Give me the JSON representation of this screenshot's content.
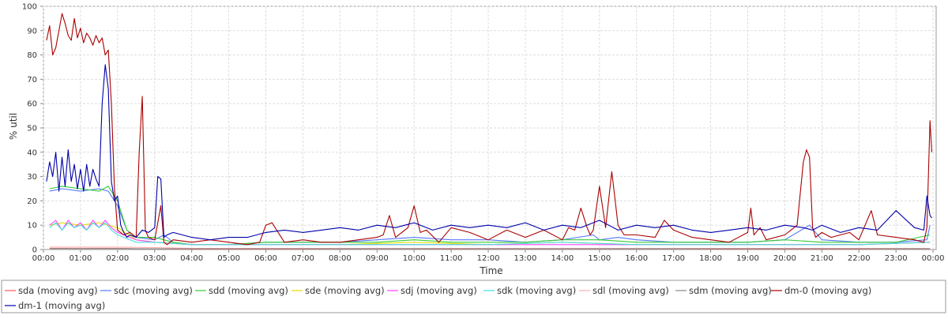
{
  "chart_data": {
    "type": "line",
    "title": "",
    "xlabel": "Time",
    "ylabel": "% util",
    "ylim": [
      0,
      100
    ],
    "xlim": [
      "00:00",
      "24:00"
    ],
    "grid": true,
    "legend_position": "bottom",
    "yticks": [
      0,
      10,
      20,
      30,
      40,
      50,
      60,
      70,
      80,
      90,
      100
    ],
    "xticks": [
      "00:00",
      "01:00",
      "02:00",
      "03:00",
      "04:00",
      "05:00",
      "06:00",
      "07:00",
      "08:00",
      "09:00",
      "10:00",
      "11:00",
      "12:00",
      "13:00",
      "14:00",
      "15:00",
      "16:00",
      "17:00",
      "18:00",
      "19:00",
      "20:00",
      "21:00",
      "22:00",
      "23:00",
      "00:00"
    ],
    "series": [
      {
        "name": "sda (moving avg)",
        "color": "#ff5555",
        "x": [
          "00:10",
          "00:30",
          "01:00",
          "01:30",
          "02:00",
          "02:30",
          "03:00",
          "04:00",
          "05:00",
          "06:00",
          "07:00",
          "08:00",
          "09:00",
          "10:00",
          "11:00",
          "12:00",
          "13:00",
          "14:00",
          "15:00",
          "16:00",
          "17:00",
          "18:00",
          "19:00",
          "20:00",
          "21:00",
          "22:00",
          "23:00",
          "23:55"
        ],
        "values": [
          0.5,
          0.5,
          0.4,
          0.5,
          0.5,
          0.3,
          0.3,
          0.2,
          0.2,
          0.2,
          0.2,
          0.3,
          0.3,
          0.3,
          0.2,
          0.3,
          0.3,
          0.3,
          0.3,
          0.3,
          0.3,
          0.2,
          0.2,
          0.2,
          0.2,
          0.2,
          0.3,
          0.3
        ]
      },
      {
        "name": "sdc (moving avg)",
        "color": "#5577ff",
        "x": [
          "00:10",
          "00:30",
          "01:00",
          "01:30",
          "01:45",
          "02:00",
          "02:15",
          "02:30",
          "03:00",
          "03:15",
          "03:30",
          "04:00",
          "05:00",
          "06:00",
          "07:00",
          "08:00",
          "09:00",
          "10:00",
          "11:00",
          "12:00",
          "13:00",
          "14:00",
          "14:50",
          "15:00",
          "15:30",
          "16:00",
          "17:00",
          "18:00",
          "19:00",
          "20:00",
          "20:40",
          "21:00",
          "22:00",
          "23:00",
          "23:50",
          "23:55"
        ],
        "values": [
          24,
          25,
          24,
          25,
          24,
          18,
          8,
          5,
          4,
          6,
          3,
          2,
          2,
          3,
          3,
          3,
          4,
          5,
          4,
          4,
          3,
          4,
          6,
          4,
          5,
          4,
          3,
          3,
          3,
          4,
          10,
          4,
          3,
          3,
          4,
          10
        ]
      },
      {
        "name": "sdd (moving avg)",
        "color": "#33cc33",
        "x": [
          "00:10",
          "00:30",
          "01:00",
          "01:30",
          "01:45",
          "02:00",
          "02:15",
          "02:30",
          "03:00",
          "03:30",
          "04:00",
          "05:00",
          "06:00",
          "07:00",
          "08:00",
          "09:00",
          "10:00",
          "11:00",
          "12:00",
          "13:00",
          "14:00",
          "15:00",
          "16:00",
          "17:00",
          "18:00",
          "19:00",
          "20:00",
          "21:00",
          "22:00",
          "23:00",
          "23:55"
        ],
        "values": [
          25,
          26,
          25,
          24,
          26,
          20,
          8,
          5,
          5,
          3,
          2,
          2,
          3,
          3,
          3,
          3,
          4,
          3,
          3,
          3,
          4,
          4,
          3,
          3,
          3,
          3,
          4,
          3,
          3,
          3,
          6
        ]
      },
      {
        "name": "sde (moving avg)",
        "color": "#e0e000",
        "x": [
          "00:10",
          "00:30",
          "01:00",
          "01:30",
          "02:00",
          "02:30",
          "03:00",
          "04:00",
          "05:00",
          "06:00",
          "08:00",
          "10:00",
          "12:00",
          "14:00",
          "16:00",
          "18:00",
          "20:00",
          "22:00",
          "23:55"
        ],
        "values": [
          10,
          11,
          10,
          11,
          9,
          4,
          3,
          2,
          2,
          2,
          2,
          3,
          2,
          3,
          2,
          2,
          2,
          2,
          3
        ]
      },
      {
        "name": "sdj (moving avg)",
        "color": "#ff44ff",
        "x": [
          "00:10",
          "00:20",
          "00:30",
          "00:40",
          "00:50",
          "01:00",
          "01:10",
          "01:20",
          "01:30",
          "01:40",
          "01:50",
          "02:00",
          "02:30",
          "03:00",
          "04:00",
          "05:00",
          "06:00",
          "08:00",
          "10:00",
          "12:00",
          "14:00",
          "16:00",
          "18:00",
          "20:00",
          "22:00",
          "23:55"
        ],
        "values": [
          10,
          12,
          8,
          12,
          9,
          11,
          8,
          12,
          9,
          12,
          9,
          7,
          4,
          3,
          2,
          2,
          2,
          2,
          2,
          2,
          2,
          2,
          2,
          2,
          2,
          3
        ]
      },
      {
        "name": "sdk (moving avg)",
        "color": "#44dddd",
        "x": [
          "00:10",
          "00:20",
          "00:30",
          "00:40",
          "00:50",
          "01:00",
          "01:10",
          "01:20",
          "01:30",
          "01:40",
          "01:50",
          "02:00",
          "02:30",
          "03:00",
          "04:00",
          "06:00",
          "08:00",
          "10:00",
          "12:00",
          "14:00",
          "16:00",
          "18:00",
          "20:00",
          "22:00",
          "23:55"
        ],
        "values": [
          9,
          11,
          8,
          11,
          9,
          10,
          8,
          11,
          9,
          11,
          8,
          6,
          3,
          3,
          2,
          2,
          2,
          2,
          2,
          3,
          2,
          2,
          2,
          2,
          3
        ]
      },
      {
        "name": "sdl (moving avg)",
        "color": "#ffaaaa",
        "x": [
          "00:10",
          "01:00",
          "02:00",
          "03:00",
          "04:00",
          "06:00",
          "08:00",
          "10:00",
          "12:00",
          "14:00",
          "16:00",
          "18:00",
          "20:00",
          "22:00",
          "23:55"
        ],
        "values": [
          1,
          1,
          1,
          0.8,
          0.5,
          0.5,
          0.5,
          0.5,
          0.5,
          0.5,
          0.5,
          0.5,
          0.5,
          0.5,
          0.5
        ]
      },
      {
        "name": "sdm (moving avg)",
        "color": "#888888",
        "x": [
          "00:10",
          "01:00",
          "02:00",
          "03:00",
          "04:00",
          "06:00",
          "08:00",
          "10:00",
          "12:00",
          "14:00",
          "16:00",
          "18:00",
          "20:00",
          "22:00",
          "23:55"
        ],
        "values": [
          0.4,
          0.4,
          0.4,
          0.3,
          0.3,
          0.3,
          0.3,
          0.3,
          0.3,
          0.3,
          0.3,
          0.3,
          0.3,
          0.3,
          0.3
        ]
      },
      {
        "name": "dm-0 (moving avg)",
        "color": "#aa0000",
        "x": [
          "00:05",
          "00:10",
          "00:15",
          "00:20",
          "00:25",
          "00:30",
          "00:35",
          "00:40",
          "00:45",
          "00:50",
          "00:55",
          "01:00",
          "01:05",
          "01:10",
          "01:15",
          "01:20",
          "01:25",
          "01:30",
          "01:35",
          "01:40",
          "01:45",
          "01:50",
          "01:55",
          "02:00",
          "02:10",
          "02:20",
          "02:30",
          "02:35",
          "02:40",
          "02:45",
          "02:50",
          "03:00",
          "03:10",
          "03:15",
          "03:20",
          "03:30",
          "04:00",
          "04:30",
          "05:00",
          "05:30",
          "05:50",
          "06:00",
          "06:10",
          "06:30",
          "07:00",
          "07:30",
          "08:00",
          "08:30",
          "09:00",
          "09:10",
          "09:20",
          "09:30",
          "09:50",
          "10:00",
          "10:10",
          "10:20",
          "10:40",
          "11:00",
          "11:30",
          "12:00",
          "12:30",
          "13:00",
          "13:30",
          "14:00",
          "14:10",
          "14:20",
          "14:30",
          "14:40",
          "14:45",
          "14:50",
          "15:00",
          "15:10",
          "15:20",
          "15:25",
          "15:30",
          "15:40",
          "16:00",
          "16:30",
          "16:45",
          "17:00",
          "17:30",
          "18:00",
          "18:30",
          "19:00",
          "19:05",
          "19:10",
          "19:20",
          "19:30",
          "20:00",
          "20:10",
          "20:20",
          "20:30",
          "20:35",
          "20:40",
          "20:45",
          "20:50",
          "21:00",
          "21:15",
          "21:30",
          "21:45",
          "22:00",
          "22:20",
          "22:30",
          "23:00",
          "23:30",
          "23:45",
          "23:50",
          "23:55",
          "23:58"
        ],
        "values": [
          86,
          92,
          80,
          83,
          90,
          97,
          93,
          88,
          86,
          95,
          87,
          91,
          85,
          89,
          87,
          84,
          88,
          85,
          87,
          80,
          82,
          60,
          25,
          8,
          6,
          7,
          5,
          40,
          63,
          8,
          5,
          4,
          18,
          3,
          2,
          4,
          3,
          4,
          3,
          2,
          3,
          10,
          11,
          3,
          4,
          3,
          3,
          4,
          5,
          6,
          14,
          5,
          9,
          18,
          7,
          8,
          3,
          9,
          7,
          4,
          8,
          5,
          8,
          4,
          9,
          8,
          17,
          9,
          6,
          8,
          26,
          9,
          32,
          21,
          10,
          6,
          6,
          5,
          12,
          8,
          5,
          4,
          3,
          7,
          17,
          6,
          9,
          4,
          6,
          8,
          10,
          36,
          41,
          38,
          9,
          5,
          7,
          5,
          6,
          7,
          4,
          16,
          6,
          5,
          4,
          3,
          9,
          53,
          40
        ]
      },
      {
        "name": "dm-1 (moving avg)",
        "color": "#0000aa",
        "x": [
          "00:05",
          "00:10",
          "00:15",
          "00:20",
          "00:25",
          "00:30",
          "00:35",
          "00:40",
          "00:45",
          "00:50",
          "00:55",
          "01:00",
          "01:05",
          "01:10",
          "01:15",
          "01:20",
          "01:25",
          "01:30",
          "01:35",
          "01:40",
          "01:45",
          "01:50",
          "01:55",
          "02:00",
          "02:05",
          "02:10",
          "02:15",
          "02:20",
          "02:30",
          "02:40",
          "02:50",
          "03:00",
          "03:05",
          "03:10",
          "03:15",
          "03:20",
          "03:30",
          "03:45",
          "04:00",
          "04:30",
          "05:00",
          "05:30",
          "06:00",
          "06:30",
          "07:00",
          "07:30",
          "08:00",
          "08:30",
          "09:00",
          "09:30",
          "10:00",
          "10:30",
          "11:00",
          "11:30",
          "12:00",
          "12:30",
          "13:00",
          "13:30",
          "14:00",
          "14:30",
          "15:00",
          "15:30",
          "16:00",
          "16:30",
          "17:00",
          "17:30",
          "18:00",
          "18:30",
          "19:00",
          "19:30",
          "20:00",
          "20:30",
          "20:45",
          "21:00",
          "21:30",
          "22:00",
          "22:30",
          "23:00",
          "23:30",
          "23:45",
          "23:50",
          "23:55",
          "23:58"
        ],
        "values": [
          28,
          36,
          30,
          40,
          24,
          38,
          26,
          41,
          28,
          35,
          25,
          33,
          24,
          35,
          26,
          33,
          29,
          26,
          60,
          76,
          66,
          28,
          20,
          22,
          10,
          7,
          5,
          6,
          5,
          8,
          7,
          9,
          30,
          29,
          5,
          6,
          7,
          6,
          5,
          4,
          5,
          5,
          7,
          8,
          7,
          8,
          9,
          8,
          10,
          9,
          11,
          8,
          10,
          9,
          10,
          9,
          11,
          8,
          10,
          9,
          12,
          8,
          10,
          9,
          10,
          8,
          7,
          8,
          9,
          8,
          10,
          9,
          8,
          10,
          7,
          9,
          8,
          16,
          9,
          8,
          22,
          14,
          13
        ]
      }
    ]
  }
}
